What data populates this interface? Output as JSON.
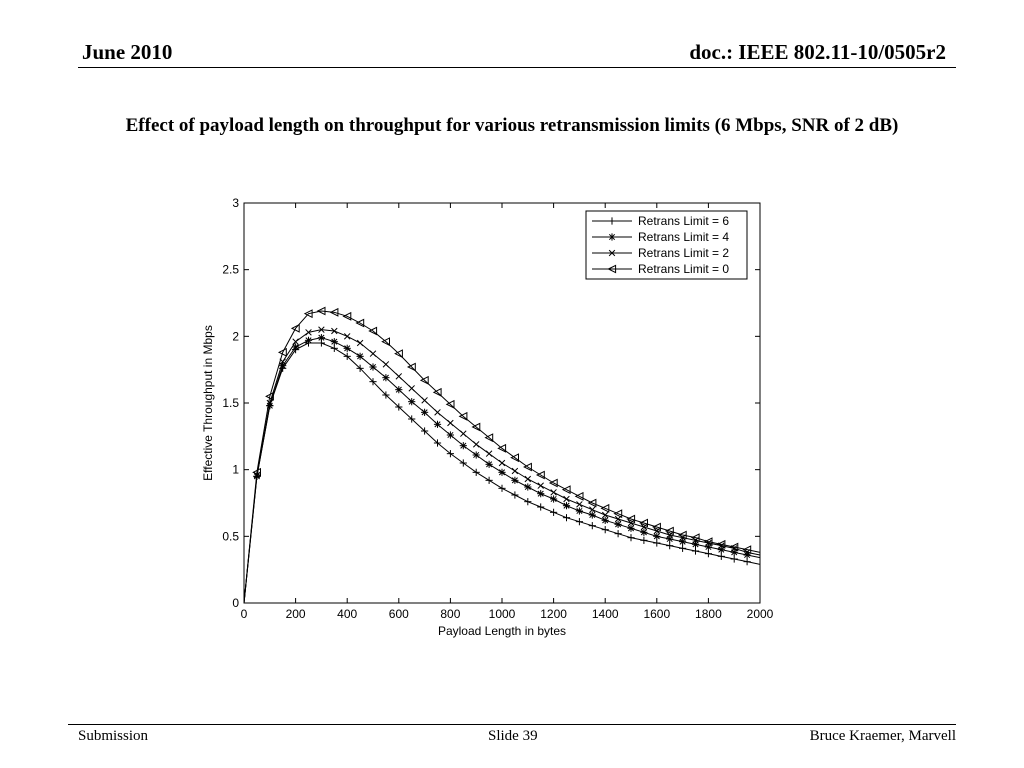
{
  "header": {
    "date": "June 2010",
    "doc_id": "doc.: IEEE 802.11-10/0505r2"
  },
  "slide": {
    "title": "Effect of payload length on throughput for various retransmission limits (6 Mbps, SNR of 2 dB)"
  },
  "footer": {
    "left": "Submission",
    "center": "Slide 39",
    "right": "Bruce Kraemer, Marvell"
  },
  "chart_data": {
    "type": "line",
    "title": "",
    "xlabel": "Payload Length in bytes",
    "ylabel": "Effective Throughput in Mbps",
    "xlim": [
      0,
      2000
    ],
    "ylim": [
      0,
      3
    ],
    "xticks": [
      0,
      200,
      400,
      600,
      800,
      1000,
      1200,
      1400,
      1600,
      1800,
      2000
    ],
    "yticks": [
      0,
      0.5,
      1,
      1.5,
      2,
      2.5,
      3
    ],
    "grid": false,
    "legend_position": "top-right",
    "x": [
      0,
      50,
      100,
      150,
      200,
      250,
      300,
      350,
      400,
      450,
      500,
      550,
      600,
      650,
      700,
      750,
      800,
      850,
      900,
      950,
      1000,
      1050,
      1100,
      1150,
      1200,
      1250,
      1300,
      1350,
      1400,
      1450,
      1500,
      1550,
      1600,
      1650,
      1700,
      1750,
      1800,
      1850,
      1900,
      1950,
      2000
    ],
    "series": [
      {
        "name": "Retrans Limit = 6",
        "marker": "plus",
        "values": [
          0,
          0.95,
          1.48,
          1.76,
          1.9,
          1.95,
          1.95,
          1.91,
          1.85,
          1.76,
          1.66,
          1.56,
          1.47,
          1.38,
          1.29,
          1.2,
          1.12,
          1.05,
          0.98,
          0.92,
          0.86,
          0.81,
          0.76,
          0.72,
          0.68,
          0.64,
          0.61,
          0.58,
          0.55,
          0.52,
          0.49,
          0.47,
          0.45,
          0.43,
          0.41,
          0.39,
          0.37,
          0.35,
          0.33,
          0.31,
          0.29
        ]
      },
      {
        "name": "Retrans Limit = 4",
        "marker": "star",
        "values": [
          0,
          0.95,
          1.48,
          1.78,
          1.92,
          1.97,
          1.99,
          1.96,
          1.91,
          1.85,
          1.77,
          1.69,
          1.6,
          1.51,
          1.43,
          1.34,
          1.26,
          1.18,
          1.11,
          1.04,
          0.98,
          0.92,
          0.87,
          0.82,
          0.78,
          0.73,
          0.69,
          0.66,
          0.62,
          0.59,
          0.56,
          0.53,
          0.5,
          0.48,
          0.46,
          0.44,
          0.42,
          0.4,
          0.38,
          0.36,
          0.34
        ]
      },
      {
        "name": "Retrans Limit = 2",
        "marker": "x",
        "values": [
          0,
          0.96,
          1.5,
          1.81,
          1.96,
          2.03,
          2.05,
          2.04,
          2.0,
          1.95,
          1.87,
          1.79,
          1.7,
          1.61,
          1.52,
          1.43,
          1.35,
          1.27,
          1.19,
          1.12,
          1.05,
          0.99,
          0.93,
          0.88,
          0.83,
          0.78,
          0.74,
          0.7,
          0.66,
          0.63,
          0.6,
          0.57,
          0.54,
          0.51,
          0.49,
          0.47,
          0.45,
          0.43,
          0.41,
          0.38,
          0.36
        ]
      },
      {
        "name": "Retrans Limit = 0",
        "marker": "triangle-left",
        "values": [
          0,
          0.98,
          1.55,
          1.88,
          2.06,
          2.17,
          2.19,
          2.18,
          2.15,
          2.1,
          2.04,
          1.96,
          1.87,
          1.77,
          1.67,
          1.58,
          1.49,
          1.4,
          1.32,
          1.24,
          1.16,
          1.09,
          1.02,
          0.96,
          0.9,
          0.85,
          0.8,
          0.75,
          0.71,
          0.67,
          0.63,
          0.6,
          0.57,
          0.54,
          0.51,
          0.49,
          0.46,
          0.44,
          0.42,
          0.4,
          0.38
        ]
      }
    ]
  }
}
